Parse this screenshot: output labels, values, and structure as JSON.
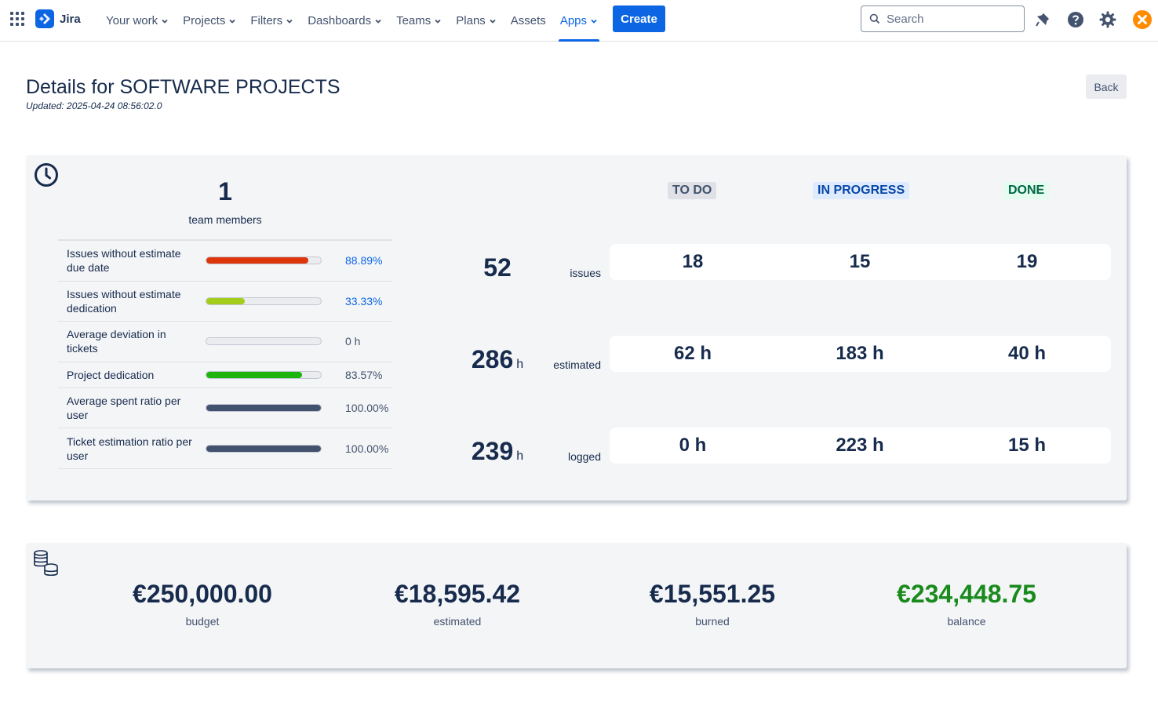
{
  "nav": {
    "logo_text": "Jira",
    "items": [
      {
        "label": "Your work",
        "dropdown": true
      },
      {
        "label": "Projects",
        "dropdown": true
      },
      {
        "label": "Filters",
        "dropdown": true
      },
      {
        "label": "Dashboards",
        "dropdown": true
      },
      {
        "label": "Teams",
        "dropdown": true
      },
      {
        "label": "Plans",
        "dropdown": true
      },
      {
        "label": "Assets",
        "dropdown": false
      },
      {
        "label": "Apps",
        "dropdown": true,
        "active": true
      }
    ],
    "create_label": "Create",
    "search_placeholder": "Search",
    "icons": [
      "app-switcher-icon",
      "notifications-icon",
      "help-icon",
      "settings-icon",
      "profile-avatar"
    ],
    "accent_color": "#0c66e4"
  },
  "page": {
    "title": "Details for SOFTWARE PROJECTS",
    "updated": "Updated: 2025-04-24 08:56:02.0",
    "back_label": "Back"
  },
  "team": {
    "count": "1",
    "label": "team members"
  },
  "metrics": [
    {
      "label": "Issues without estimate due date",
      "value": "88.89%",
      "fraction": 0.8889,
      "color": "#de350b",
      "link": true
    },
    {
      "label": "Issues without estimate dedication",
      "value": "33.33%",
      "fraction": 0.3333,
      "color": "#a4cc1a",
      "link": true
    },
    {
      "label": "Average deviation in tickets",
      "value": "0 h",
      "fraction": 0,
      "color": "#c1c7d0",
      "link": false
    },
    {
      "label": "Project dedication",
      "value": "83.57%",
      "fraction": 0.8357,
      "color": "#1eb40e",
      "link": false
    },
    {
      "label": "Average spent ratio per user",
      "value": "100.00%",
      "fraction": 1.0,
      "color": "#42526e",
      "link": false
    },
    {
      "label": "Ticket estimation ratio per user",
      "value": "100.00%",
      "fraction": 1.0,
      "color": "#42526e",
      "link": false
    }
  ],
  "statuses": {
    "todo": "TO DO",
    "in_progress": "IN PROGRESS",
    "done": "DONE"
  },
  "summary_rows": [
    {
      "total": "52",
      "unit": "",
      "label": "issues",
      "todo": "18",
      "in_progress": "15",
      "done": "19"
    },
    {
      "total": "286",
      "unit": "h",
      "label": "estimated",
      "todo": "62 h",
      "in_progress": "183 h",
      "done": "40 h"
    },
    {
      "total": "239",
      "unit": "h",
      "label": "logged",
      "todo": "0 h",
      "in_progress": "223 h",
      "done": "15 h"
    }
  ],
  "budget": {
    "items": [
      {
        "value": "€250,000.00",
        "label": "budget",
        "color": "#172b4d"
      },
      {
        "value": "€18,595.42",
        "label": "estimated",
        "color": "#172b4d"
      },
      {
        "value": "€15,551.25",
        "label": "burned",
        "color": "#172b4d"
      },
      {
        "value": "€234,448.75",
        "label": "balance",
        "color": "#198a1c"
      }
    ]
  }
}
